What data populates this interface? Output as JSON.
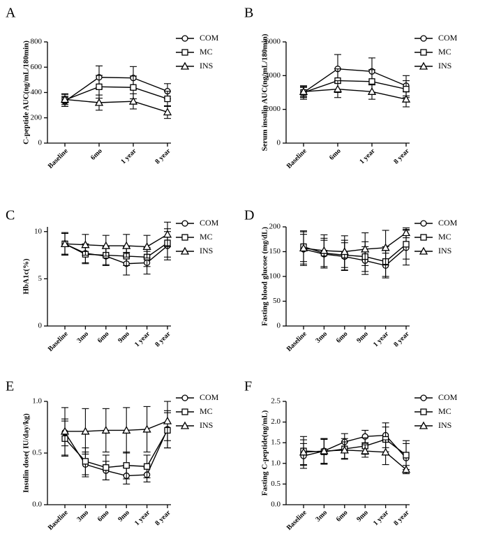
{
  "chart_data": [
    {
      "type": "line",
      "panel_label": "A",
      "y_label": "C-peptide AUC(ng/mL/180min)",
      "categories": [
        "Baseline",
        "6mo",
        "1 year",
        "8 year"
      ],
      "series": [
        {
          "name": "COM",
          "marker": "circle",
          "color": "#000000",
          "values": [
            330,
            520,
            515,
            410
          ],
          "errors": [
            40,
            90,
            90,
            60
          ]
        },
        {
          "name": "MC",
          "marker": "square",
          "color": "#000000",
          "values": [
            340,
            445,
            440,
            350
          ],
          "errors": [
            50,
            90,
            90,
            60
          ]
        },
        {
          "name": "INS",
          "marker": "triangle",
          "color": "#000000",
          "values": [
            345,
            320,
            330,
            245
          ],
          "errors": [
            40,
            60,
            60,
            50
          ]
        }
      ],
      "ylim": [
        0,
        800
      ],
      "yticks": [
        0,
        200,
        400,
        600,
        800
      ]
    },
    {
      "type": "line",
      "panel_label": "B",
      "y_label": "Serum insulin AUC(ng/mL/180min)",
      "categories": [
        "Baseline",
        "6mo",
        "1 year",
        "8 year"
      ],
      "series": [
        {
          "name": "COM",
          "marker": "circle",
          "color": "#000000",
          "values": [
            3000,
            4400,
            4250,
            3400
          ],
          "errors": [
            400,
            850,
            800,
            600
          ]
        },
        {
          "name": "MC",
          "marker": "square",
          "color": "#000000",
          "values": [
            3000,
            3700,
            3650,
            3200
          ],
          "errors": [
            300,
            700,
            700,
            500
          ]
        },
        {
          "name": "INS",
          "marker": "triangle",
          "color": "#000000",
          "values": [
            3050,
            3200,
            3050,
            2600
          ],
          "errors": [
            300,
            500,
            450,
            450
          ]
        }
      ],
      "ylim": [
        0,
        6000
      ],
      "yticks": [
        0,
        2000,
        4000,
        6000
      ]
    },
    {
      "type": "line",
      "panel_label": "C",
      "y_label": "HbA1c(%)",
      "categories": [
        "Baseline",
        "3mo",
        "6mo",
        "9mo",
        "1 year",
        "8 year"
      ],
      "series": [
        {
          "name": "COM",
          "marker": "circle",
          "color": "#000000",
          "values": [
            8.7,
            7.7,
            7.4,
            6.6,
            6.7,
            8.5
          ],
          "errors": [
            1.1,
            1.0,
            1.0,
            1.2,
            1.2,
            1.5
          ]
        },
        {
          "name": "MC",
          "marker": "square",
          "color": "#000000",
          "values": [
            8.7,
            7.6,
            7.5,
            7.4,
            7.3,
            8.8
          ],
          "errors": [
            1.1,
            1.0,
            1.0,
            1.0,
            1.0,
            1.5
          ]
        },
        {
          "name": "INS",
          "marker": "triangle",
          "color": "#000000",
          "values": [
            8.7,
            8.6,
            8.5,
            8.5,
            8.4,
            9.7
          ],
          "errors": [
            1.2,
            1.1,
            1.1,
            1.2,
            1.2,
            1.3
          ]
        }
      ],
      "ylim": [
        0,
        10.5
      ],
      "yticks": [
        0,
        5,
        10
      ]
    },
    {
      "type": "line",
      "panel_label": "D",
      "y_label": "Fasting blood glucose (mg/dL)",
      "categories": [
        "Baseline",
        "3mo",
        "6mo",
        "9mo",
        "1 year",
        "8 year"
      ],
      "series": [
        {
          "name": "COM",
          "marker": "circle",
          "color": "#000000",
          "values": [
            155,
            145,
            140,
            132,
            122,
            158
          ],
          "errors": [
            30,
            28,
            28,
            28,
            25,
            35
          ]
        },
        {
          "name": "MC",
          "marker": "square",
          "color": "#000000",
          "values": [
            160,
            147,
            143,
            140,
            130,
            165
          ],
          "errors": [
            30,
            30,
            30,
            30,
            30,
            30
          ]
        },
        {
          "name": "INS",
          "marker": "triangle",
          "color": "#000000",
          "values": [
            157,
            152,
            150,
            155,
            158,
            188
          ],
          "errors": [
            35,
            32,
            32,
            33,
            35,
            10
          ]
        }
      ],
      "ylim": [
        0,
        200
      ],
      "yticks": [
        0,
        50,
        100,
        150,
        200
      ]
    },
    {
      "type": "line",
      "panel_label": "E",
      "y_label": "Insulin dose( IU/day/kg)",
      "categories": [
        "Baseline",
        "3mo",
        "6mo",
        "9mo",
        "1 year",
        "8 year"
      ],
      "series": [
        {
          "name": "COM",
          "marker": "circle",
          "color": "#000000",
          "values": [
            0.7,
            0.39,
            0.33,
            0.28,
            0.29,
            0.73
          ],
          "errors": [
            0.13,
            0.12,
            0.09,
            0.08,
            0.07,
            0.18
          ]
        },
        {
          "name": "MC",
          "marker": "square",
          "color": "#000000",
          "values": [
            0.64,
            0.42,
            0.36,
            0.38,
            0.37,
            0.72
          ],
          "errors": [
            0.17,
            0.13,
            0.12,
            0.13,
            0.11,
            0.17
          ]
        },
        {
          "name": "INS",
          "marker": "triangle",
          "color": "#000000",
          "values": [
            0.71,
            0.71,
            0.72,
            0.72,
            0.73,
            0.81
          ],
          "errors": [
            0.23,
            0.22,
            0.21,
            0.22,
            0.22,
            0.19
          ]
        }
      ],
      "ylim": [
        0,
        1.0
      ],
      "yticks": [
        {
          "value": 0,
          "label": "0.0"
        },
        {
          "value": 0.5,
          "label": "0.5"
        },
        {
          "value": 1.0,
          "label": "1.0"
        }
      ]
    },
    {
      "type": "line",
      "panel_label": "F",
      "y_label": "Fasting C-peptide(ng/mL)",
      "categories": [
        "Baseline",
        "3mo",
        "6mo",
        "9mo",
        "1 year",
        "8 year"
      ],
      "series": [
        {
          "name": "COM",
          "marker": "circle",
          "color": "#000000",
          "values": [
            1.18,
            1.3,
            1.52,
            1.65,
            1.68,
            1.13
          ],
          "errors": [
            0.3,
            0.3,
            0.2,
            0.15,
            0.3,
            0.35
          ]
        },
        {
          "name": "MC",
          "marker": "square",
          "color": "#000000",
          "values": [
            1.3,
            1.28,
            1.35,
            1.42,
            1.58,
            1.2
          ],
          "errors": [
            0.35,
            0.3,
            0.25,
            0.2,
            0.3,
            0.35
          ]
        },
        {
          "name": "INS",
          "marker": "triangle",
          "color": "#000000",
          "values": [
            1.27,
            1.3,
            1.32,
            1.3,
            1.27,
            0.85
          ],
          "errors": [
            0.3,
            0.3,
            0.2,
            0.15,
            0.3,
            0.1
          ]
        }
      ],
      "ylim": [
        0,
        2.5
      ],
      "yticks": [
        {
          "value": 0,
          "label": "0.0"
        },
        {
          "value": 0.5,
          "label": "0.5"
        },
        {
          "value": 1.0,
          "label": "1.0"
        },
        {
          "value": 1.5,
          "label": "1.5"
        },
        {
          "value": 2.0,
          "label": "2.0"
        },
        {
          "value": 2.5,
          "label": "2.5"
        }
      ]
    }
  ]
}
